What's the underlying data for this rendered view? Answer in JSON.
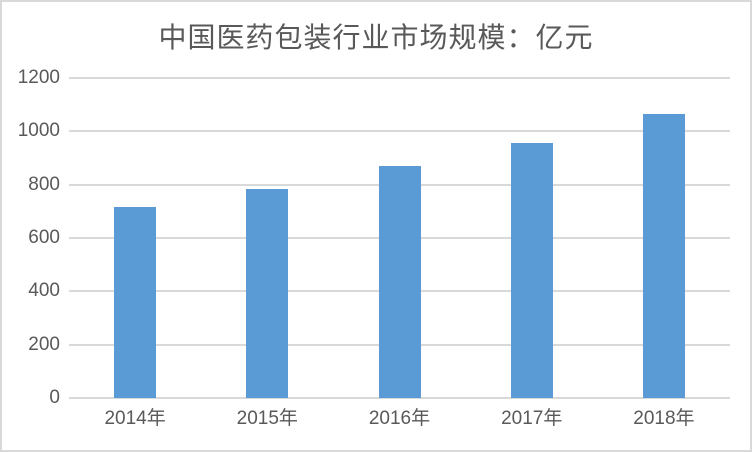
{
  "chart_data": {
    "type": "bar",
    "title": "中国医药包装行业市场规模：亿元",
    "categories": [
      "2014年",
      "2015年",
      "2016年",
      "2017年",
      "2018年"
    ],
    "values": [
      715,
      785,
      870,
      958,
      1065
    ],
    "xlabel": "",
    "ylabel": "",
    "ylim": [
      0,
      1200
    ],
    "yticks": [
      0,
      200,
      400,
      600,
      800,
      1000,
      1200
    ],
    "grid": "horizontal-only",
    "legend": "none",
    "data_labels": "none",
    "colors": {
      "bar": "#5B9BD5",
      "gridline": "#D9D9D9",
      "axis_label": "#595959",
      "title": "#595959",
      "background": "#FFFFFF",
      "frame_border": "#D9D9D9"
    }
  }
}
